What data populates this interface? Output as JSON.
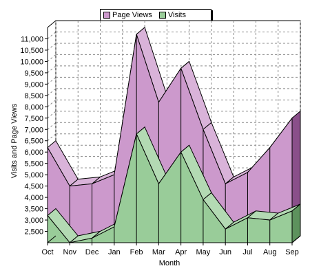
{
  "chart_data": {
    "type": "area",
    "title": "",
    "xlabel": "Month",
    "ylabel": "Visits and Page Views",
    "categories": [
      "Oct",
      "Nov",
      "Dec",
      "Jan",
      "Feb",
      "Mar",
      "Apr",
      "May",
      "Jun",
      "Jul",
      "Aug",
      "Sep"
    ],
    "series": [
      {
        "name": "Page Views",
        "color": "#cc99cc",
        "values": [
          6200,
          4500,
          4600,
          5000,
          11200,
          8200,
          9700,
          7000,
          4600,
          5100,
          6200,
          7500
        ]
      },
      {
        "name": "Visits",
        "color": "#99cc99",
        "values": [
          3200,
          2000,
          2200,
          2700,
          6800,
          4600,
          6000,
          3900,
          2600,
          3100,
          3000,
          3400
        ]
      }
    ],
    "ylim": [
      2000,
      11500
    ],
    "yticks": [
      "2,500",
      "3,000",
      "3,500",
      "4,000",
      "4,500",
      "5,000",
      "5,500",
      "6,000",
      "6,500",
      "7,000",
      "7,500",
      "8,000",
      "8,500",
      "9,000",
      "9,500",
      "10,000",
      "10,500",
      "11,000"
    ],
    "grid": true,
    "legend_position": "top-center",
    "stacked": false,
    "style": "3d-depth"
  }
}
